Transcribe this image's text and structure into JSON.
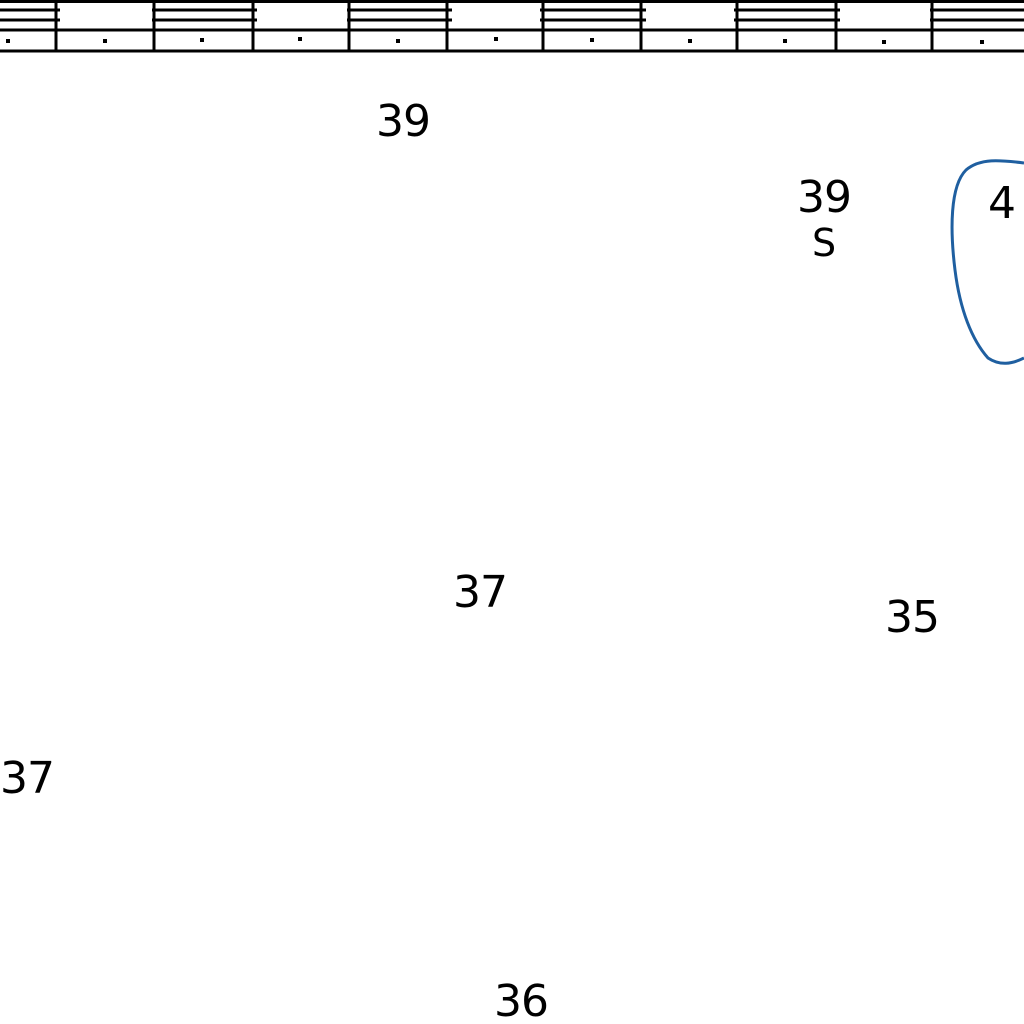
{
  "chart": {
    "soundings": [
      {
        "id": "s1",
        "value": "39"
      },
      {
        "id": "s2",
        "value": "39"
      },
      {
        "id": "s3",
        "value": "4"
      },
      {
        "id": "s4",
        "value": "37"
      },
      {
        "id": "s5",
        "value": "35"
      },
      {
        "id": "s6",
        "value": "37"
      },
      {
        "id": "s7",
        "value": "36"
      }
    ],
    "bottom_quality": {
      "value": "S"
    },
    "border_fill_pattern": [
      "white",
      "black",
      "white",
      "black",
      "white",
      "black",
      "white",
      "black",
      "white",
      "black",
      "white"
    ],
    "colors": {
      "background": "#ffffff",
      "ink": "#000000",
      "depth_contour": "#1f5fa0"
    }
  }
}
